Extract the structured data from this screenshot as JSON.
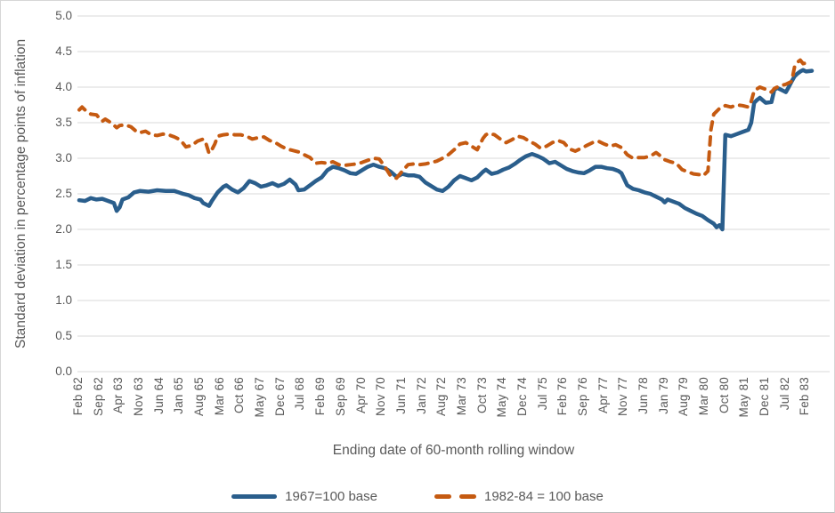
{
  "chart_data": {
    "type": "line",
    "title": "",
    "xlabel": "Ending date of 60-month rolling window",
    "ylabel": "Standard deviation in percentage points of inflation",
    "x_axis_note": "monthly series; month index 0 = Feb 1962, tick labels every 7 months",
    "x_tick_step_months": 7,
    "x_tick_labels": [
      "Feb 62",
      "Sep 62",
      "Apr 63",
      "Nov 63",
      "Jun 64",
      "Jan 65",
      "Aug 65",
      "Mar 66",
      "Oct 66",
      "May 67",
      "Dec 67",
      "Jul 68",
      "Feb 69",
      "Sep 69",
      "Apr 70",
      "Nov 70",
      "Jun 71",
      "Jan 72",
      "Aug 72",
      "Mar 73",
      "Oct 73",
      "May 74",
      "Dec 74",
      "Jul 75",
      "Feb 76",
      "Sep 76",
      "Apr 77",
      "Nov 77",
      "Jun 78",
      "Jan 79",
      "Aug 79",
      "Mar 80",
      "Oct 80",
      "May 81",
      "Dec 81",
      "Jul 82",
      "Feb 83"
    ],
    "y_ticks": [
      0,
      0.5,
      1,
      1.5,
      2,
      2.5,
      3,
      3.5,
      4,
      4.5,
      5
    ],
    "ylim": [
      0,
      5
    ],
    "grid": "horizontal-only",
    "gridline_color": "#d9d9d9",
    "legend_position": "bottom-center",
    "series": [
      {
        "name": "1967=100 base",
        "style": "solid",
        "color": "#2a5e8c",
        "points": [
          [
            0,
            2.41
          ],
          [
            2,
            2.4
          ],
          [
            4,
            2.44
          ],
          [
            6,
            2.42
          ],
          [
            8,
            2.43
          ],
          [
            10,
            2.4
          ],
          [
            12,
            2.37
          ],
          [
            13,
            2.26
          ],
          [
            14,
            2.31
          ],
          [
            15,
            2.42
          ],
          [
            17,
            2.45
          ],
          [
            19,
            2.52
          ],
          [
            21,
            2.54
          ],
          [
            24,
            2.53
          ],
          [
            27,
            2.55
          ],
          [
            30,
            2.54
          ],
          [
            33,
            2.54
          ],
          [
            36,
            2.5
          ],
          [
            38,
            2.48
          ],
          [
            40,
            2.44
          ],
          [
            42,
            2.42
          ],
          [
            43,
            2.37
          ],
          [
            45,
            2.33
          ],
          [
            46,
            2.4
          ],
          [
            48,
            2.52
          ],
          [
            50,
            2.6
          ],
          [
            51,
            2.62
          ],
          [
            53,
            2.56
          ],
          [
            55,
            2.52
          ],
          [
            57,
            2.58
          ],
          [
            59,
            2.68
          ],
          [
            61,
            2.65
          ],
          [
            63,
            2.6
          ],
          [
            65,
            2.62
          ],
          [
            67,
            2.65
          ],
          [
            69,
            2.61
          ],
          [
            71,
            2.64
          ],
          [
            73,
            2.7
          ],
          [
            75,
            2.63
          ],
          [
            76,
            2.55
          ],
          [
            78,
            2.56
          ],
          [
            80,
            2.62
          ],
          [
            82,
            2.68
          ],
          [
            84,
            2.73
          ],
          [
            86,
            2.83
          ],
          [
            88,
            2.88
          ],
          [
            90,
            2.86
          ],
          [
            92,
            2.83
          ],
          [
            94,
            2.79
          ],
          [
            96,
            2.78
          ],
          [
            98,
            2.83
          ],
          [
            100,
            2.88
          ],
          [
            102,
            2.91
          ],
          [
            104,
            2.88
          ],
          [
            106,
            2.86
          ],
          [
            108,
            2.81
          ],
          [
            110,
            2.74
          ],
          [
            112,
            2.78
          ],
          [
            114,
            2.76
          ],
          [
            116,
            2.76
          ],
          [
            118,
            2.74
          ],
          [
            120,
            2.66
          ],
          [
            122,
            2.61
          ],
          [
            124,
            2.56
          ],
          [
            126,
            2.54
          ],
          [
            128,
            2.6
          ],
          [
            130,
            2.69
          ],
          [
            132,
            2.75
          ],
          [
            134,
            2.72
          ],
          [
            136,
            2.69
          ],
          [
            138,
            2.73
          ],
          [
            140,
            2.81
          ],
          [
            141,
            2.84
          ],
          [
            143,
            2.78
          ],
          [
            145,
            2.8
          ],
          [
            147,
            2.84
          ],
          [
            149,
            2.87
          ],
          [
            151,
            2.92
          ],
          [
            153,
            2.98
          ],
          [
            155,
            3.03
          ],
          [
            157,
            3.06
          ],
          [
            159,
            3.03
          ],
          [
            161,
            2.99
          ],
          [
            163,
            2.93
          ],
          [
            165,
            2.95
          ],
          [
            167,
            2.9
          ],
          [
            169,
            2.85
          ],
          [
            171,
            2.82
          ],
          [
            173,
            2.8
          ],
          [
            175,
            2.79
          ],
          [
            177,
            2.83
          ],
          [
            179,
            2.88
          ],
          [
            181,
            2.88
          ],
          [
            183,
            2.86
          ],
          [
            185,
            2.85
          ],
          [
            187,
            2.82
          ],
          [
            188,
            2.79
          ],
          [
            190,
            2.62
          ],
          [
            192,
            2.57
          ],
          [
            194,
            2.55
          ],
          [
            196,
            2.52
          ],
          [
            198,
            2.5
          ],
          [
            200,
            2.46
          ],
          [
            202,
            2.42
          ],
          [
            203,
            2.38
          ],
          [
            204,
            2.42
          ],
          [
            206,
            2.39
          ],
          [
            208,
            2.36
          ],
          [
            210,
            2.3
          ],
          [
            212,
            2.26
          ],
          [
            214,
            2.22
          ],
          [
            216,
            2.19
          ],
          [
            218,
            2.13
          ],
          [
            220,
            2.08
          ],
          [
            221,
            2.03
          ],
          [
            222,
            2.06
          ],
          [
            223,
            2.0
          ],
          [
            224,
            3.33
          ],
          [
            226,
            3.31
          ],
          [
            228,
            3.34
          ],
          [
            230,
            3.37
          ],
          [
            232,
            3.4
          ],
          [
            233,
            3.5
          ],
          [
            234,
            3.78
          ],
          [
            235,
            3.82
          ],
          [
            236,
            3.85
          ],
          [
            238,
            3.78
          ],
          [
            240,
            3.79
          ],
          [
            241,
            3.96
          ],
          [
            242,
            3.99
          ],
          [
            244,
            3.95
          ],
          [
            245,
            3.93
          ],
          [
            246,
            4.0
          ],
          [
            247,
            4.08
          ],
          [
            248,
            4.15
          ],
          [
            249,
            4.19
          ],
          [
            250,
            4.22
          ],
          [
            251,
            4.24
          ],
          [
            252,
            4.22
          ],
          [
            254,
            4.23
          ]
        ]
      },
      {
        "name": "1982-84 = 100 base",
        "style": "dashed",
        "color": "#c55a11",
        "points": [
          [
            0,
            3.68
          ],
          [
            1,
            3.72
          ],
          [
            2,
            3.68
          ],
          [
            4,
            3.62
          ],
          [
            6,
            3.61
          ],
          [
            7,
            3.56
          ],
          [
            8,
            3.52
          ],
          [
            9,
            3.55
          ],
          [
            11,
            3.5
          ],
          [
            13,
            3.43
          ],
          [
            14,
            3.46
          ],
          [
            16,
            3.47
          ],
          [
            18,
            3.44
          ],
          [
            20,
            3.37
          ],
          [
            21,
            3.36
          ],
          [
            23,
            3.38
          ],
          [
            25,
            3.33
          ],
          [
            27,
            3.32
          ],
          [
            29,
            3.34
          ],
          [
            31,
            3.33
          ],
          [
            33,
            3.3
          ],
          [
            35,
            3.26
          ],
          [
            37,
            3.16
          ],
          [
            39,
            3.18
          ],
          [
            41,
            3.24
          ],
          [
            43,
            3.27
          ],
          [
            44,
            3.2
          ],
          [
            45,
            3.07
          ],
          [
            46,
            3.12
          ],
          [
            47,
            3.2
          ],
          [
            48,
            3.31
          ],
          [
            50,
            3.33
          ],
          [
            52,
            3.34
          ],
          [
            54,
            3.33
          ],
          [
            56,
            3.33
          ],
          [
            58,
            3.31
          ],
          [
            60,
            3.27
          ],
          [
            62,
            3.29
          ],
          [
            64,
            3.3
          ],
          [
            66,
            3.25
          ],
          [
            68,
            3.22
          ],
          [
            70,
            3.17
          ],
          [
            72,
            3.13
          ],
          [
            74,
            3.11
          ],
          [
            76,
            3.09
          ],
          [
            78,
            3.05
          ],
          [
            80,
            3.01
          ],
          [
            82,
            2.93
          ],
          [
            84,
            2.94
          ],
          [
            86,
            2.93
          ],
          [
            88,
            2.95
          ],
          [
            90,
            2.91
          ],
          [
            92,
            2.9
          ],
          [
            94,
            2.91
          ],
          [
            96,
            2.92
          ],
          [
            98,
            2.94
          ],
          [
            100,
            2.97
          ],
          [
            102,
            3.0
          ],
          [
            104,
            2.99
          ],
          [
            106,
            2.88
          ],
          [
            108,
            2.75
          ],
          [
            110,
            2.72
          ],
          [
            112,
            2.82
          ],
          [
            114,
            2.91
          ],
          [
            116,
            2.92
          ],
          [
            118,
            2.91
          ],
          [
            120,
            2.92
          ],
          [
            122,
            2.94
          ],
          [
            124,
            2.96
          ],
          [
            126,
            3.0
          ],
          [
            128,
            3.05
          ],
          [
            130,
            3.12
          ],
          [
            132,
            3.2
          ],
          [
            134,
            3.22
          ],
          [
            136,
            3.17
          ],
          [
            138,
            3.12
          ],
          [
            140,
            3.28
          ],
          [
            141,
            3.33
          ],
          [
            142,
            3.35
          ],
          [
            144,
            3.33
          ],
          [
            146,
            3.27
          ],
          [
            148,
            3.22
          ],
          [
            150,
            3.26
          ],
          [
            152,
            3.31
          ],
          [
            154,
            3.29
          ],
          [
            156,
            3.24
          ],
          [
            158,
            3.2
          ],
          [
            160,
            3.14
          ],
          [
            162,
            3.17
          ],
          [
            164,
            3.22
          ],
          [
            166,
            3.25
          ],
          [
            168,
            3.22
          ],
          [
            170,
            3.13
          ],
          [
            172,
            3.1
          ],
          [
            174,
            3.14
          ],
          [
            176,
            3.18
          ],
          [
            178,
            3.22
          ],
          [
            180,
            3.24
          ],
          [
            182,
            3.2
          ],
          [
            184,
            3.17
          ],
          [
            186,
            3.19
          ],
          [
            188,
            3.15
          ],
          [
            190,
            3.05
          ],
          [
            192,
            3.0
          ],
          [
            194,
            3.01
          ],
          [
            196,
            3.01
          ],
          [
            198,
            3.03
          ],
          [
            200,
            3.08
          ],
          [
            201,
            3.05
          ],
          [
            203,
            2.98
          ],
          [
            205,
            2.95
          ],
          [
            207,
            2.93
          ],
          [
            209,
            2.84
          ],
          [
            211,
            2.81
          ],
          [
            213,
            2.78
          ],
          [
            215,
            2.77
          ],
          [
            216,
            2.8
          ],
          [
            217,
            2.78
          ],
          [
            218,
            2.82
          ],
          [
            219,
            3.4
          ],
          [
            220,
            3.62
          ],
          [
            222,
            3.7
          ],
          [
            224,
            3.74
          ],
          [
            226,
            3.72
          ],
          [
            228,
            3.75
          ],
          [
            230,
            3.74
          ],
          [
            232,
            3.72
          ],
          [
            233,
            3.8
          ],
          [
            234,
            3.95
          ],
          [
            236,
            4.0
          ],
          [
            238,
            3.97
          ],
          [
            240,
            3.93
          ],
          [
            241,
            3.98
          ],
          [
            243,
            4.02
          ],
          [
            245,
            4.04
          ],
          [
            247,
            4.08
          ],
          [
            248,
            4.28
          ],
          [
            249,
            4.35
          ],
          [
            250,
            4.38
          ],
          [
            251,
            4.33
          ],
          [
            252,
            4.34
          ]
        ]
      }
    ]
  },
  "colors": {
    "text": "#595959",
    "gridline": "#d9d9d9",
    "frame_border": "#d6d6d6",
    "series_1967": "#2a5e8c",
    "series_1982_84": "#c55a11"
  },
  "legend": {
    "items": [
      {
        "label": "1967=100 base",
        "marker": "solid-line",
        "color": "#2a5e8c"
      },
      {
        "label": "1982-84 = 100 base",
        "marker": "dashed-line",
        "color": "#c55a11"
      }
    ]
  }
}
